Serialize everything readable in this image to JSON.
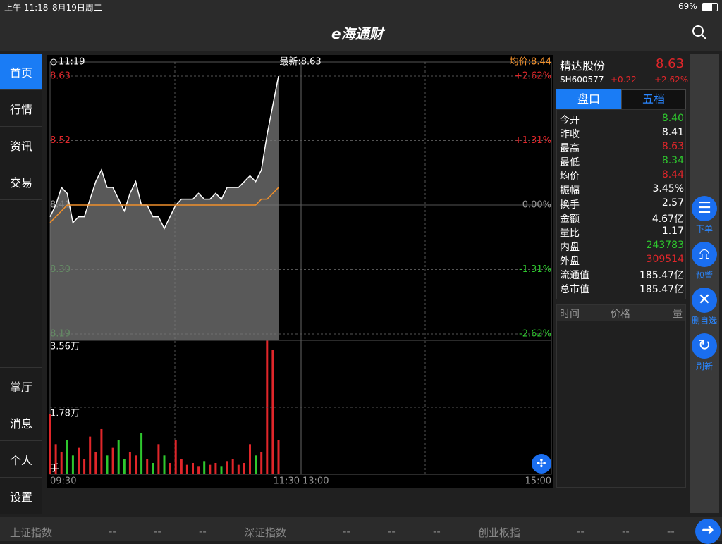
{
  "status_bar": {
    "time": "上午 11:18",
    "date": "8月19日周二",
    "battery": "69%"
  },
  "header": {
    "title": "e海通财"
  },
  "sidebar": {
    "items": [
      "首页",
      "行情",
      "资讯",
      "交易"
    ],
    "bottom_items": [
      "掌厅",
      "消息",
      "个人",
      "设置"
    ]
  },
  "chart": {
    "type": "line",
    "time": "11:19",
    "latest": "最新:8.63",
    "avg": "均价:8.44",
    "price_color": "#ffffff",
    "avg_color": "#f0902c",
    "up_color": "#e0262a",
    "down_color": "#2ec82e",
    "price_values": [
      8.39,
      8.41,
      8.44,
      8.43,
      8.38,
      8.39,
      8.39,
      8.42,
      8.45,
      8.47,
      8.44,
      8.44,
      8.42,
      8.4,
      8.43,
      8.45,
      8.41,
      8.41,
      8.39,
      8.39,
      8.37,
      8.39,
      8.41,
      8.42,
      8.42,
      8.42,
      8.43,
      8.42,
      8.42,
      8.43,
      8.42,
      8.44,
      8.44,
      8.44,
      8.45,
      8.46,
      8.45,
      8.47,
      8.53,
      8.58,
      8.63
    ],
    "avg_values": [
      8.38,
      8.39,
      8.4,
      8.41,
      8.41,
      8.41,
      8.41,
      8.41,
      8.41,
      8.41,
      8.41,
      8.41,
      8.41,
      8.41,
      8.41,
      8.41,
      8.41,
      8.41,
      8.41,
      8.41,
      8.41,
      8.41,
      8.41,
      8.41,
      8.41,
      8.41,
      8.41,
      8.41,
      8.41,
      8.41,
      8.41,
      8.41,
      8.41,
      8.41,
      8.41,
      8.41,
      8.41,
      8.42,
      8.42,
      8.43,
      8.44
    ],
    "ylim": [
      8.19,
      8.63
    ],
    "yticks": [
      8.63,
      8.52,
      8.41,
      {
        "value": 8.3,
        "label": "8.30"
      },
      8.19
    ],
    "y2lim": [
      -2.62,
      2.62
    ],
    "y2ticks": [
      {
        "value": 2.62,
        "label": "+2.62%"
      },
      {
        "value": 1.31,
        "label": "+1.31%"
      },
      {
        "value": 0,
        "label": "0.00%"
      },
      {
        "value": -1.31,
        "label": "-1.31%"
      },
      {
        "value": -2.62,
        "label": "-2.62%"
      }
    ],
    "volume_values": [
      16000,
      8000,
      6000,
      9000,
      5000,
      7000,
      4000,
      10000,
      6000,
      12000,
      5000,
      7000,
      9000,
      4000,
      6000,
      5000,
      11000,
      4000,
      3000,
      8000,
      5000,
      3000,
      9000,
      4000,
      2500,
      3000,
      2000,
      3500,
      2500,
      3000,
      2000,
      3500,
      4000,
      2500,
      3000,
      8000,
      5000,
      6000,
      35600,
      33000,
      9000
    ],
    "volume_ylim": [
      0,
      35600
    ],
    "volume_yticks": [
      {
        "value": 35600,
        "label": "3.56万"
      },
      {
        "value": 17800,
        "label": "1.78万"
      }
    ],
    "volume_unit": "手",
    "xticks": [
      "09:30",
      "11:30",
      "13:00",
      "15:00"
    ]
  },
  "quote": {
    "name": "精达股份",
    "price": "8.63",
    "code": "SH600577",
    "change": "+0.22",
    "pct": "+2.62%",
    "tabs": [
      "盘口",
      "五档"
    ],
    "rows": [
      {
        "label": "今开",
        "value": "8.40",
        "color": "#2ec82e"
      },
      {
        "label": "昨收",
        "value": "8.41",
        "color": "#ffffff"
      },
      {
        "label": "最高",
        "value": "8.63",
        "color": "#e0262a"
      },
      {
        "label": "最低",
        "value": "8.34",
        "color": "#2ec82e"
      },
      {
        "label": "均价",
        "value": "8.44",
        "color": "#e0262a"
      },
      {
        "label": "振幅",
        "value": "3.45%",
        "color": "#ffffff"
      },
      {
        "label": "换手",
        "value": "2.57",
        "color": "#ffffff"
      },
      {
        "label": "金额",
        "value": "4.67亿",
        "color": "#ffffff"
      },
      {
        "label": "量比",
        "value": "1.17",
        "color": "#ffffff"
      },
      {
        "label": "内盘",
        "value": "243783",
        "color": "#2ec82e"
      },
      {
        "label": "外盘",
        "value": "309514",
        "color": "#e0262a"
      },
      {
        "label": "流通值",
        "value": "185.47亿",
        "color": "#ffffff"
      },
      {
        "label": "总市值",
        "value": "185.47亿",
        "color": "#ffffff"
      }
    ]
  },
  "trades_header": [
    "时间",
    "价格",
    "量"
  ],
  "actions": [
    "下单",
    "预警",
    "删自选",
    "刷新"
  ],
  "ticker": [
    {
      "name": "上证指数",
      "values": [
        "--",
        "--",
        "--"
      ]
    },
    {
      "name": "深证指数",
      "values": [
        "--",
        "--",
        "--"
      ]
    },
    {
      "name": "创业板指",
      "values": [
        "--",
        "--",
        "--"
      ]
    }
  ]
}
